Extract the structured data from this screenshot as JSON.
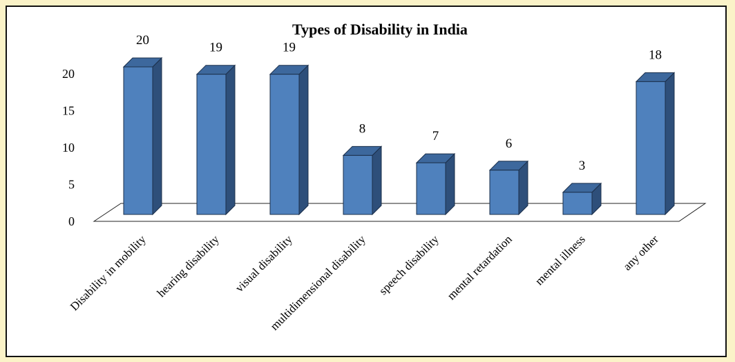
{
  "chart_data": {
    "type": "bar",
    "title": "Types of Disability in India",
    "categories": [
      "Disability in mobility",
      "hearing disability",
      "visual disability",
      "multidimensional disability",
      "speech disability",
      "mental retardation",
      "mental illness",
      "any other"
    ],
    "values": [
      20,
      19,
      19,
      8,
      7,
      6,
      3,
      18
    ],
    "ylim": [
      0,
      20
    ],
    "yticks": [
      0,
      5,
      10,
      15,
      20
    ],
    "xlabel": "",
    "ylabel": "",
    "grid": false,
    "legend": "none",
    "bar_color": "#4f81bd",
    "bar_side_color": "#2e4f7a",
    "bar_top_color": "#3d689d"
  }
}
